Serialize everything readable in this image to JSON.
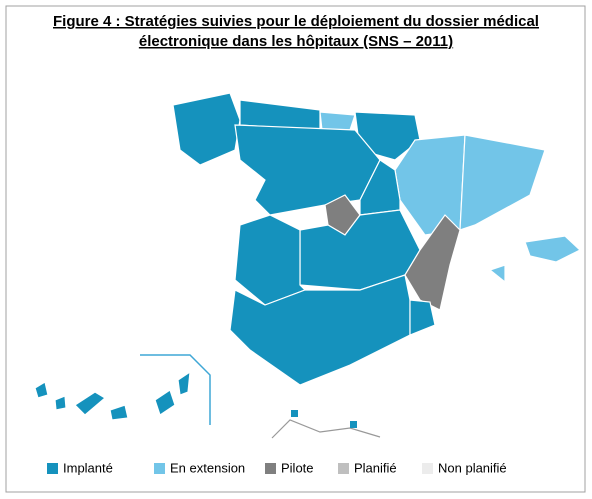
{
  "title": [
    "Figure 4 : Stratégies suivies pour le déploiement du dossier médical",
    "électronique dans les hôpitaux (SNS – 2011)"
  ],
  "legend": [
    {
      "label": "Implanté",
      "color": "#1592bd"
    },
    {
      "label": "En extension",
      "color": "#72c5e8"
    },
    {
      "label": "Pilote",
      "color": "#7f7f7f"
    },
    {
      "label": "Planifié",
      "color": "#bfbfbf"
    },
    {
      "label": "Non planifié",
      "color": "#ececec"
    }
  ]
}
